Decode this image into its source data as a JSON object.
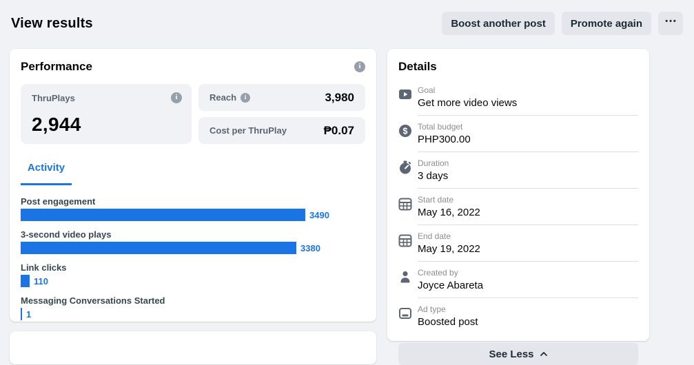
{
  "header": {
    "title": "View results",
    "buttons": [
      {
        "label": "Boost another post"
      },
      {
        "label": "Promote again"
      },
      {
        "label": "•••"
      }
    ]
  },
  "performance": {
    "title": "Performance",
    "thruplays": {
      "label": "ThruPlays",
      "value": "2,944"
    },
    "reach": {
      "label": "Reach",
      "value": "3,980"
    },
    "cost_per_thruplay": {
      "label": "Cost per ThruPlay",
      "value": "₱0.07"
    },
    "tab_label": "Activity"
  },
  "chart_data": {
    "type": "bar",
    "orientation": "horizontal",
    "title": "Activity",
    "categories": [
      "Post engagement",
      "3-second video plays",
      "Link clicks",
      "Messaging Conversations Started"
    ],
    "values": [
      3490,
      3380,
      110,
      1
    ],
    "value_labels": [
      "3490",
      "3380",
      "110",
      "1"
    ],
    "xlim": [
      0,
      3650
    ],
    "bar_color": "#1b74e4",
    "grid": false,
    "legend": false
  },
  "details": {
    "title": "Details",
    "rows": [
      {
        "icon": "video-play-icon",
        "label": "Goal",
        "value": "Get more video views"
      },
      {
        "icon": "dollar-icon",
        "label": "Total budget",
        "value": "PHP300.00"
      },
      {
        "icon": "stopwatch-icon",
        "label": "Duration",
        "value": "3 days"
      },
      {
        "icon": "calendar-icon",
        "label": "Start date",
        "value": "May 16, 2022"
      },
      {
        "icon": "calendar-icon",
        "label": "End date",
        "value": "May 19, 2022"
      },
      {
        "icon": "person-icon",
        "label": "Created by",
        "value": "Joyce Abareta"
      },
      {
        "icon": "screen-icon",
        "label": "Ad type",
        "value": "Boosted post"
      }
    ],
    "see_less_label": "See Less"
  },
  "colors": {
    "accent_blue": "#1b74e4",
    "page_bg": "#f0f2f5",
    "tile_bg": "#f0f2f5",
    "button_bg": "#e4e6eb",
    "divider": "#dadde1"
  }
}
